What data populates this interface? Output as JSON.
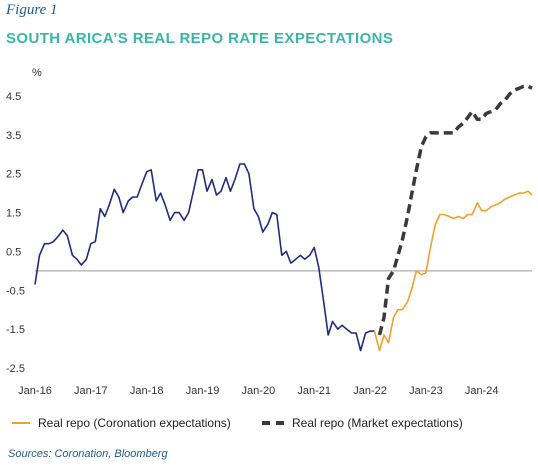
{
  "figure_label": "Figure 1",
  "title": "SOUTH ARICA’S REAL REPO RATE EXPECTATIONS",
  "source": "Sources: Coronation, Bloomberg",
  "colors": {
    "historical": "#1f2d7a",
    "coronation": "#f0a030",
    "market": "#3a3a3a",
    "zero_line": "#999999"
  },
  "chart_data": {
    "type": "line",
    "ylabel": "%",
    "ylim": [
      -2.5,
      4.5
    ],
    "yticks": [
      4.5,
      3.5,
      2.5,
      1.5,
      0.5,
      -0.5,
      -1.5,
      -2.5
    ],
    "xlim": [
      2016.0,
      2024.9
    ],
    "xticks": [
      {
        "label": "Jan-16",
        "x": 2016.0
      },
      {
        "label": "Jan-17",
        "x": 2017.0
      },
      {
        "label": "Jan-18",
        "x": 2018.0
      },
      {
        "label": "Jan-19",
        "x": 2019.0
      },
      {
        "label": "Jan-20",
        "x": 2020.0
      },
      {
        "label": "Jan-21",
        "x": 2021.0
      },
      {
        "label": "Jan-22",
        "x": 2022.0
      },
      {
        "label": "Jan-23",
        "x": 2023.0
      },
      {
        "label": "Jan-24",
        "x": 2024.0
      }
    ],
    "series": [
      {
        "key": "historical",
        "style": "solid",
        "points": [
          [
            2016.0,
            -0.35
          ],
          [
            2016.08,
            0.4
          ],
          [
            2016.17,
            0.7
          ],
          [
            2016.25,
            0.7
          ],
          [
            2016.33,
            0.75
          ],
          [
            2016.42,
            0.9
          ],
          [
            2016.5,
            1.05
          ],
          [
            2016.58,
            0.9
          ],
          [
            2016.67,
            0.4
          ],
          [
            2016.75,
            0.3
          ],
          [
            2016.83,
            0.15
          ],
          [
            2016.92,
            0.3
          ],
          [
            2017.0,
            0.7
          ],
          [
            2017.08,
            0.75
          ],
          [
            2017.17,
            1.6
          ],
          [
            2017.25,
            1.4
          ],
          [
            2017.33,
            1.7
          ],
          [
            2017.42,
            2.1
          ],
          [
            2017.5,
            1.9
          ],
          [
            2017.58,
            1.5
          ],
          [
            2017.67,
            1.8
          ],
          [
            2017.75,
            1.9
          ],
          [
            2017.83,
            1.9
          ],
          [
            2017.92,
            2.25
          ],
          [
            2018.0,
            2.55
          ],
          [
            2018.08,
            2.6
          ],
          [
            2018.17,
            1.8
          ],
          [
            2018.25,
            2.0
          ],
          [
            2018.33,
            1.7
          ],
          [
            2018.42,
            1.3
          ],
          [
            2018.5,
            1.5
          ],
          [
            2018.58,
            1.5
          ],
          [
            2018.67,
            1.3
          ],
          [
            2018.75,
            1.5
          ],
          [
            2018.83,
            2.0
          ],
          [
            2018.92,
            2.6
          ],
          [
            2019.0,
            2.6
          ],
          [
            2019.08,
            2.05
          ],
          [
            2019.17,
            2.35
          ],
          [
            2019.25,
            1.95
          ],
          [
            2019.33,
            2.05
          ],
          [
            2019.42,
            2.4
          ],
          [
            2019.5,
            2.05
          ],
          [
            2019.58,
            2.35
          ],
          [
            2019.67,
            2.75
          ],
          [
            2019.75,
            2.75
          ],
          [
            2019.83,
            2.5
          ],
          [
            2019.92,
            1.6
          ],
          [
            2020.0,
            1.4
          ],
          [
            2020.08,
            1.0
          ],
          [
            2020.17,
            1.2
          ],
          [
            2020.25,
            1.5
          ],
          [
            2020.33,
            1.45
          ],
          [
            2020.42,
            0.4
          ],
          [
            2020.5,
            0.5
          ],
          [
            2020.58,
            0.2
          ],
          [
            2020.67,
            0.3
          ],
          [
            2020.75,
            0.4
          ],
          [
            2020.83,
            0.3
          ],
          [
            2020.92,
            0.4
          ],
          [
            2021.0,
            0.6
          ],
          [
            2021.08,
            0.1
          ],
          [
            2021.17,
            -0.8
          ],
          [
            2021.25,
            -1.65
          ],
          [
            2021.33,
            -1.3
          ],
          [
            2021.42,
            -1.5
          ],
          [
            2021.5,
            -1.4
          ],
          [
            2021.58,
            -1.5
          ],
          [
            2021.67,
            -1.6
          ],
          [
            2021.75,
            -1.6
          ],
          [
            2021.83,
            -2.05
          ],
          [
            2021.92,
            -1.6
          ],
          [
            2022.0,
            -1.55
          ],
          [
            2022.08,
            -1.55
          ]
        ]
      },
      {
        "key": "coronation",
        "name": "Real repo (Coronation expectations)",
        "style": "solid",
        "points": [
          [
            2022.08,
            -1.55
          ],
          [
            2022.17,
            -2.05
          ],
          [
            2022.25,
            -1.65
          ],
          [
            2022.33,
            -1.85
          ],
          [
            2022.42,
            -1.2
          ],
          [
            2022.5,
            -1.0
          ],
          [
            2022.58,
            -1.0
          ],
          [
            2022.67,
            -0.8
          ],
          [
            2022.75,
            -0.45
          ],
          [
            2022.83,
            0.0
          ],
          [
            2022.92,
            -0.1
          ],
          [
            2023.0,
            -0.05
          ],
          [
            2023.08,
            0.6
          ],
          [
            2023.17,
            1.2
          ],
          [
            2023.25,
            1.45
          ],
          [
            2023.33,
            1.45
          ],
          [
            2023.42,
            1.4
          ],
          [
            2023.5,
            1.35
          ],
          [
            2023.58,
            1.4
          ],
          [
            2023.67,
            1.35
          ],
          [
            2023.75,
            1.45
          ],
          [
            2023.83,
            1.45
          ],
          [
            2023.92,
            1.75
          ],
          [
            2024.0,
            1.55
          ],
          [
            2024.08,
            1.55
          ],
          [
            2024.17,
            1.65
          ],
          [
            2024.25,
            1.7
          ],
          [
            2024.33,
            1.75
          ],
          [
            2024.42,
            1.85
          ],
          [
            2024.5,
            1.9
          ],
          [
            2024.58,
            1.95
          ],
          [
            2024.67,
            2.0
          ],
          [
            2024.75,
            2.0
          ],
          [
            2024.83,
            2.05
          ],
          [
            2024.9,
            1.95
          ]
        ]
      },
      {
        "key": "market",
        "name": "Real repo (Market expectations)",
        "style": "dashed",
        "points": [
          [
            2022.17,
            -1.65
          ],
          [
            2022.25,
            -1.2
          ],
          [
            2022.33,
            -0.2
          ],
          [
            2022.42,
            0.0
          ],
          [
            2022.5,
            0.4
          ],
          [
            2022.58,
            0.8
          ],
          [
            2022.67,
            1.4
          ],
          [
            2022.75,
            2.0
          ],
          [
            2022.83,
            2.6
          ],
          [
            2022.92,
            3.2
          ],
          [
            2023.0,
            3.45
          ],
          [
            2023.08,
            3.55
          ],
          [
            2023.17,
            3.55
          ],
          [
            2023.25,
            3.55
          ],
          [
            2023.33,
            3.55
          ],
          [
            2023.42,
            3.55
          ],
          [
            2023.5,
            3.55
          ],
          [
            2023.58,
            3.7
          ],
          [
            2023.67,
            3.8
          ],
          [
            2023.75,
            3.95
          ],
          [
            2023.83,
            4.1
          ],
          [
            2023.92,
            3.9
          ],
          [
            2024.0,
            3.9
          ],
          [
            2024.08,
            4.05
          ],
          [
            2024.17,
            4.1
          ],
          [
            2024.25,
            4.15
          ],
          [
            2024.33,
            4.3
          ],
          [
            2024.42,
            4.4
          ],
          [
            2024.5,
            4.55
          ],
          [
            2024.58,
            4.65
          ],
          [
            2024.67,
            4.7
          ],
          [
            2024.75,
            4.75
          ],
          [
            2024.83,
            4.75
          ],
          [
            2024.9,
            4.7
          ]
        ]
      }
    ],
    "legend": "bottom"
  }
}
